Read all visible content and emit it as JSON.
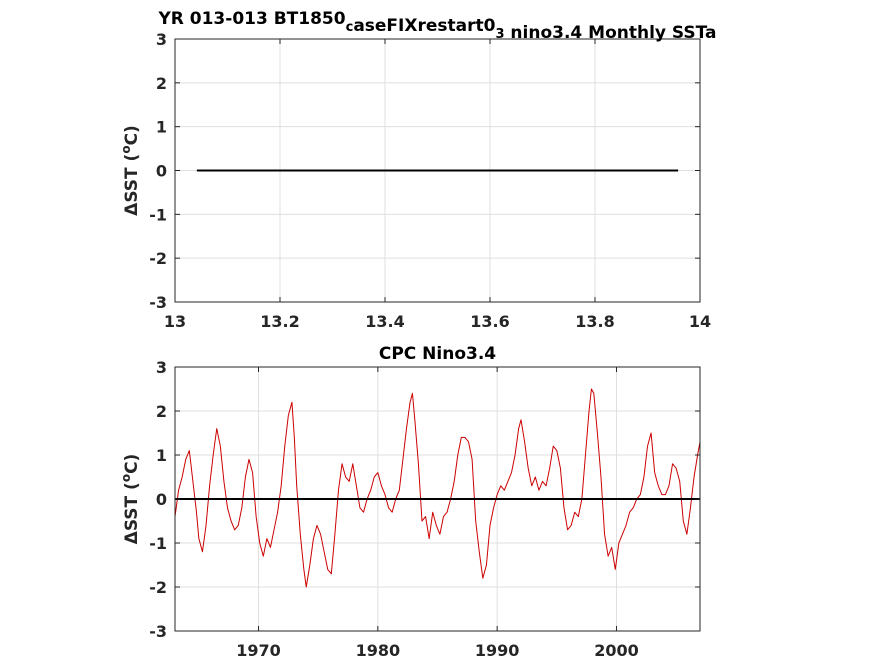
{
  "chart_data": [
    {
      "type": "line",
      "title_parts": [
        {
          "text": "YR 013-013 BT1850",
          "sub": false
        },
        {
          "text": "c",
          "sub": true
        },
        {
          "text": "aseFIXrestart0",
          "sub": false
        },
        {
          "text": "3",
          "sub": true
        },
        {
          "text": " nino3.4 Monthly SSTa",
          "sub": false
        }
      ],
      "ylabel_main": "ΔSST (",
      "ylabel_sup": "o",
      "ylabel_end": "C)",
      "xlim": [
        13,
        14
      ],
      "ylim": [
        -3,
        3
      ],
      "xticks": [
        13,
        13.2,
        13.4,
        13.6,
        13.8,
        14
      ],
      "xtick_labels": [
        "13",
        "13.2",
        "13.4",
        "13.6",
        "13.8",
        "14"
      ],
      "yticks": [
        -3,
        -2,
        -1,
        0,
        1,
        2,
        3
      ],
      "ytick_labels": [
        "-3",
        "-2",
        "-1",
        "0",
        "1",
        "2",
        "3"
      ],
      "grid": true,
      "series": [
        {
          "color": "#000000",
          "x": [
            13.0417,
            13.9583
          ],
          "y": [
            0,
            0
          ]
        }
      ]
    },
    {
      "type": "line",
      "title_parts": [
        {
          "text": "CPC Nino3.4",
          "sub": false
        }
      ],
      "ylabel_main": "ΔSST (",
      "ylabel_sup": "o",
      "ylabel_end": "C)",
      "xlim": [
        1963,
        2007
      ],
      "ylim": [
        -3,
        3
      ],
      "xticks": [
        1970,
        1980,
        1990,
        2000
      ],
      "xtick_labels": [
        "1970",
        "1980",
        "1990",
        "2000"
      ],
      "yticks": [
        -3,
        -2,
        -1,
        0,
        1,
        2,
        3
      ],
      "ytick_labels": [
        "-3",
        "-2",
        "-1",
        "0",
        "1",
        "2",
        "3"
      ],
      "grid": true,
      "series": [
        {
          "color": "#cc0000",
          "x": [
            1963.0,
            1963.3,
            1963.6,
            1963.9,
            1964.2,
            1964.5,
            1964.8,
            1965.0,
            1965.3,
            1965.6,
            1965.9,
            1966.2,
            1966.5,
            1966.8,
            1967.1,
            1967.4,
            1967.7,
            1968.0,
            1968.3,
            1968.6,
            1968.9,
            1969.2,
            1969.5,
            1969.8,
            1970.1,
            1970.4,
            1970.7,
            1971.0,
            1971.3,
            1971.6,
            1971.9,
            1972.2,
            1972.5,
            1972.8,
            1973.0,
            1973.2,
            1973.5,
            1973.8,
            1974.0,
            1974.3,
            1974.6,
            1974.9,
            1975.2,
            1975.5,
            1975.8,
            1976.1,
            1976.4,
            1976.7,
            1977.0,
            1977.3,
            1977.6,
            1977.9,
            1978.2,
            1978.5,
            1978.8,
            1979.1,
            1979.4,
            1979.7,
            1980.0,
            1980.3,
            1980.6,
            1980.9,
            1981.2,
            1981.5,
            1981.8,
            1982.1,
            1982.4,
            1982.7,
            1982.9,
            1983.1,
            1983.4,
            1983.7,
            1984.0,
            1984.3,
            1984.6,
            1984.9,
            1985.2,
            1985.5,
            1985.8,
            1986.1,
            1986.4,
            1986.7,
            1987.0,
            1987.3,
            1987.6,
            1987.9,
            1988.2,
            1988.5,
            1988.8,
            1989.1,
            1989.4,
            1989.7,
            1990.0,
            1990.3,
            1990.6,
            1990.9,
            1991.2,
            1991.5,
            1991.8,
            1992.0,
            1992.3,
            1992.6,
            1992.9,
            1993.2,
            1993.5,
            1993.8,
            1994.1,
            1994.4,
            1994.7,
            1995.0,
            1995.3,
            1995.6,
            1995.9,
            1996.2,
            1996.5,
            1996.8,
            1997.1,
            1997.4,
            1997.7,
            1997.9,
            1998.1,
            1998.4,
            1998.7,
            1999.0,
            1999.3,
            1999.6,
            1999.9,
            2000.2,
            2000.5,
            2000.8,
            2001.1,
            2001.4,
            2001.7,
            2002.0,
            2002.3,
            2002.6,
            2002.9,
            2003.2,
            2003.5,
            2003.8,
            2004.1,
            2004.4,
            2004.7,
            2005.0,
            2005.3,
            2005.6,
            2005.9,
            2006.2,
            2006.5,
            2006.8,
            2007.0
          ],
          "y": [
            -0.4,
            0.2,
            0.5,
            0.9,
            1.1,
            0.4,
            -0.3,
            -0.9,
            -1.2,
            -0.6,
            0.3,
            1.0,
            1.6,
            1.2,
            0.4,
            -0.2,
            -0.5,
            -0.7,
            -0.6,
            -0.2,
            0.5,
            0.9,
            0.6,
            -0.4,
            -1.0,
            -1.3,
            -0.9,
            -1.1,
            -0.7,
            -0.3,
            0.3,
            1.2,
            1.9,
            2.2,
            1.4,
            0.3,
            -0.8,
            -1.6,
            -2.0,
            -1.5,
            -0.9,
            -0.6,
            -0.8,
            -1.2,
            -1.6,
            -1.7,
            -0.8,
            0.2,
            0.8,
            0.5,
            0.4,
            0.8,
            0.3,
            -0.2,
            -0.3,
            0.0,
            0.2,
            0.5,
            0.6,
            0.3,
            0.1,
            -0.2,
            -0.3,
            0.0,
            0.2,
            0.9,
            1.6,
            2.2,
            2.4,
            1.8,
            0.8,
            -0.5,
            -0.4,
            -0.9,
            -0.3,
            -0.6,
            -0.8,
            -0.4,
            -0.3,
            0.0,
            0.4,
            1.0,
            1.4,
            1.4,
            1.3,
            0.9,
            -0.5,
            -1.2,
            -1.8,
            -1.5,
            -0.6,
            -0.2,
            0.1,
            0.3,
            0.2,
            0.4,
            0.6,
            1.0,
            1.6,
            1.8,
            1.3,
            0.7,
            0.3,
            0.5,
            0.2,
            0.4,
            0.3,
            0.7,
            1.2,
            1.1,
            0.7,
            -0.2,
            -0.7,
            -0.6,
            -0.3,
            -0.4,
            0.0,
            1.0,
            2.0,
            2.5,
            2.4,
            1.5,
            0.5,
            -0.8,
            -1.3,
            -1.1,
            -1.6,
            -1.0,
            -0.8,
            -0.6,
            -0.3,
            -0.2,
            0.0,
            0.1,
            0.5,
            1.2,
            1.5,
            0.6,
            0.3,
            0.1,
            0.1,
            0.3,
            0.8,
            0.7,
            0.4,
            -0.5,
            -0.8,
            -0.2,
            0.5,
            1.0,
            1.3
          ]
        },
        {
          "color": "#000000",
          "x": [
            1963,
            2007
          ],
          "y": [
            0,
            0
          ]
        }
      ]
    }
  ]
}
